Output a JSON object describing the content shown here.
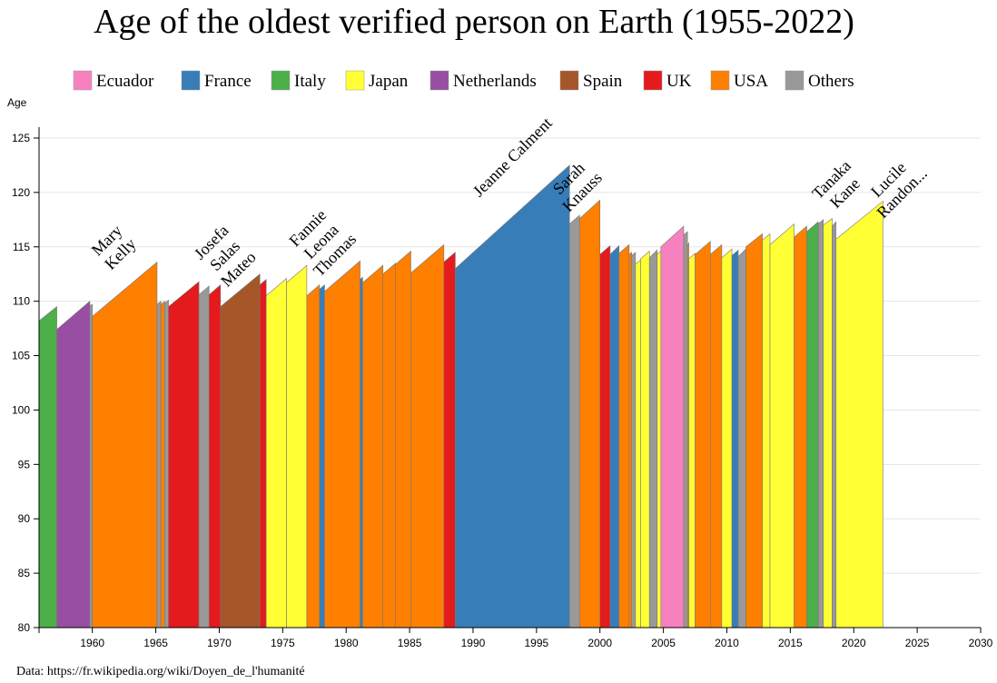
{
  "chart_data": {
    "type": "area",
    "title": "Age of the oldest verified person on Earth (1955-2022)",
    "ylabel": "Age",
    "xlim": [
      1955.8,
      2030
    ],
    "ylim": [
      80,
      126
    ],
    "yticks": [
      80,
      85,
      90,
      95,
      100,
      105,
      110,
      115,
      120,
      125
    ],
    "xticks": [
      1960,
      1965,
      1970,
      1975,
      1980,
      1985,
      1990,
      1995,
      2000,
      2005,
      2010,
      2015,
      2020,
      2025,
      2030
    ],
    "grid": true,
    "legend_position": "top",
    "source": "Data: https://fr.wikipedia.org/wiki/Doyen_de_l'humanité",
    "legend": [
      {
        "key": "Ecuador",
        "label": "Ecuador",
        "color": "#f781bf"
      },
      {
        "key": "France",
        "label": "France",
        "color": "#377eb8"
      },
      {
        "key": "Italy",
        "label": "Italy",
        "color": "#4daf4a"
      },
      {
        "key": "Japan",
        "label": "Japan",
        "color": "#ffff33"
      },
      {
        "key": "Netherlands",
        "label": "Netherlands",
        "color": "#984ea3"
      },
      {
        "key": "Spain",
        "label": "Spain",
        "color": "#a65628"
      },
      {
        "key": "UK",
        "label": "UK",
        "color": "#e41a1c"
      },
      {
        "key": "USA",
        "label": "USA",
        "color": "#ff7f00"
      },
      {
        "key": "Others",
        "label": "Others",
        "color": "#999999"
      }
    ],
    "segments": [
      {
        "country": "Italy",
        "x0": 1955.8,
        "x1": 1957.2,
        "y0": 108.2,
        "y1": 109.5
      },
      {
        "country": "Netherlands",
        "x0": 1957.2,
        "x1": 1959.8,
        "y0": 107.4,
        "y1": 110.0
      },
      {
        "country": "Others",
        "x0": 1959.8,
        "x1": 1960.0,
        "y0": 109.6,
        "y1": 109.7
      },
      {
        "country": "USA",
        "x0": 1960.0,
        "x1": 1965.1,
        "y0": 108.6,
        "y1": 113.6
      },
      {
        "country": "Others",
        "x0": 1965.1,
        "x1": 1965.4,
        "y0": 109.7,
        "y1": 110.0
      },
      {
        "country": "USA",
        "x0": 1965.4,
        "x1": 1965.7,
        "y0": 109.7,
        "y1": 110.0
      },
      {
        "country": "Others",
        "x0": 1965.7,
        "x1": 1966.0,
        "y0": 109.8,
        "y1": 110.1
      },
      {
        "country": "UK",
        "x0": 1966.0,
        "x1": 1968.4,
        "y0": 109.5,
        "y1": 111.8
      },
      {
        "country": "Others",
        "x0": 1968.4,
        "x1": 1969.2,
        "y0": 110.6,
        "y1": 111.4
      },
      {
        "country": "UK",
        "x0": 1969.2,
        "x1": 1970.1,
        "y0": 110.6,
        "y1": 111.5
      },
      {
        "country": "Spain",
        "x0": 1970.1,
        "x1": 1973.2,
        "y0": 109.5,
        "y1": 112.5
      },
      {
        "country": "UK",
        "x0": 1973.2,
        "x1": 1973.7,
        "y0": 111.5,
        "y1": 112.0
      },
      {
        "country": "Japan",
        "x0": 1973.7,
        "x1": 1975.3,
        "y0": 110.5,
        "y1": 112.1
      },
      {
        "country": "Japan",
        "x0": 1975.3,
        "x1": 1976.9,
        "y0": 111.7,
        "y1": 113.3
      },
      {
        "country": "USA",
        "x0": 1976.9,
        "x1": 1977.9,
        "y0": 110.5,
        "y1": 111.5
      },
      {
        "country": "France",
        "x0": 1977.9,
        "x1": 1978.3,
        "y0": 111.1,
        "y1": 111.5
      },
      {
        "country": "USA",
        "x0": 1978.3,
        "x1": 1981.1,
        "y0": 110.9,
        "y1": 113.7
      },
      {
        "country": "France",
        "x0": 1981.1,
        "x1": 1981.3,
        "y0": 112.0,
        "y1": 112.2
      },
      {
        "country": "USA",
        "x0": 1981.3,
        "x1": 1982.9,
        "y0": 111.7,
        "y1": 113.3
      },
      {
        "country": "USA",
        "x0": 1982.9,
        "x1": 1983.9,
        "y0": 112.5,
        "y1": 113.5
      },
      {
        "country": "USA",
        "x0": 1983.9,
        "x1": 1985.1,
        "y0": 113.4,
        "y1": 114.6
      },
      {
        "country": "USA",
        "x0": 1985.1,
        "x1": 1987.7,
        "y0": 112.6,
        "y1": 115.2
      },
      {
        "country": "UK",
        "x0": 1987.7,
        "x1": 1988.6,
        "y0": 113.6,
        "y1": 114.5
      },
      {
        "country": "France",
        "x0": 1988.6,
        "x1": 1997.6,
        "y0": 113.0,
        "y1": 122.5
      },
      {
        "country": "Others",
        "x0": 1997.6,
        "x1": 1998.4,
        "y0": 117.1,
        "y1": 117.9
      },
      {
        "country": "USA",
        "x0": 1998.4,
        "x1": 2000.0,
        "y0": 117.6,
        "y1": 119.3
      },
      {
        "country": "UK",
        "x0": 2000.0,
        "x1": 2000.8,
        "y0": 114.3,
        "y1": 115.1
      },
      {
        "country": "France",
        "x0": 2000.8,
        "x1": 2001.5,
        "y0": 114.3,
        "y1": 115.1
      },
      {
        "country": "USA",
        "x0": 2001.5,
        "x1": 2002.3,
        "y0": 114.4,
        "y1": 115.2
      },
      {
        "country": "USA",
        "x0": 2002.3,
        "x1": 2002.5,
        "y0": 114.3,
        "y1": 114.5
      },
      {
        "country": "Others",
        "x0": 2002.5,
        "x1": 2002.8,
        "y0": 114.2,
        "y1": 114.5
      },
      {
        "country": "Japan",
        "x0": 2002.8,
        "x1": 2003.2,
        "y0": 113.4,
        "y1": 113.8
      },
      {
        "country": "Japan",
        "x0": 2003.2,
        "x1": 2003.9,
        "y0": 113.9,
        "y1": 114.6
      },
      {
        "country": "Others",
        "x0": 2003.9,
        "x1": 2004.5,
        "y0": 114.0,
        "y1": 114.7
      },
      {
        "country": "Japan",
        "x0": 2004.5,
        "x1": 2004.8,
        "y0": 114.3,
        "y1": 114.6
      },
      {
        "country": "Ecuador",
        "x0": 2004.8,
        "x1": 2006.6,
        "y0": 115.0,
        "y1": 116.9
      },
      {
        "country": "Others",
        "x0": 2006.6,
        "x1": 2006.9,
        "y0": 116.1,
        "y1": 116.4
      },
      {
        "country": "USA",
        "x0": 2006.9,
        "x1": 2007.0,
        "y0": 115.0,
        "y1": 115.4
      },
      {
        "country": "Japan",
        "x0": 2007.0,
        "x1": 2007.5,
        "y0": 113.9,
        "y1": 114.4
      },
      {
        "country": "USA",
        "x0": 2007.5,
        "x1": 2008.7,
        "y0": 114.3,
        "y1": 115.5
      },
      {
        "country": "USA",
        "x0": 2008.7,
        "x1": 2009.6,
        "y0": 114.3,
        "y1": 115.2
      },
      {
        "country": "Japan",
        "x0": 2009.6,
        "x1": 2010.4,
        "y0": 114.0,
        "y1": 114.8
      },
      {
        "country": "France",
        "x0": 2010.4,
        "x1": 2010.9,
        "y0": 114.2,
        "y1": 114.7
      },
      {
        "country": "Others",
        "x0": 2010.9,
        "x1": 2011.5,
        "y0": 114.1,
        "y1": 114.8
      },
      {
        "country": "USA",
        "x0": 2011.5,
        "x1": 2012.8,
        "y0": 115.0,
        "y1": 116.2
      },
      {
        "country": "Japan",
        "x0": 2012.8,
        "x1": 2013.4,
        "y0": 115.6,
        "y1": 116.2
      },
      {
        "country": "Japan",
        "x0": 2013.4,
        "x1": 2015.3,
        "y0": 115.2,
        "y1": 117.1
      },
      {
        "country": "USA",
        "x0": 2015.3,
        "x1": 2016.3,
        "y0": 115.9,
        "y1": 116.9
      },
      {
        "country": "Italy",
        "x0": 2016.3,
        "x1": 2017.2,
        "y0": 116.4,
        "y1": 117.3
      },
      {
        "country": "Others",
        "x0": 2017.2,
        "x1": 2017.6,
        "y0": 117.1,
        "y1": 117.5
      },
      {
        "country": "Japan",
        "x0": 2017.6,
        "x1": 2018.3,
        "y0": 117.0,
        "y1": 117.6
      },
      {
        "country": "Others",
        "x0": 2018.3,
        "x1": 2018.6,
        "y0": 116.9,
        "y1": 117.3
      },
      {
        "country": "Japan",
        "x0": 2018.6,
        "x1": 2022.3,
        "y0": 115.7,
        "y1": 119.2
      }
    ],
    "annotations": [
      {
        "lines": [
          "Mary",
          "Kelly"
        ],
        "x": 1962.5,
        "y": 114.0
      },
      {
        "lines": [
          "Josefa",
          "Salas",
          "Mateo"
        ],
        "x": 1971.8,
        "y": 112.6
      },
      {
        "lines": [
          "Fannie",
          "Leona",
          "Thomas"
        ],
        "x": 1979.4,
        "y": 113.9
      },
      {
        "lines": [
          "Jeanne Calment"
        ],
        "x": 1993.4,
        "y": 122.9
      },
      {
        "lines": [
          "Sarah",
          "Knauss"
        ],
        "x": 1998.9,
        "y": 119.7
      },
      {
        "lines": [
          "Tanaka",
          "Kane"
        ],
        "x": 2019.6,
        "y": 119.6
      },
      {
        "lines": [
          "Lucile",
          "Randon..."
        ],
        "x": 2024.1,
        "y": 119.6
      }
    ]
  }
}
